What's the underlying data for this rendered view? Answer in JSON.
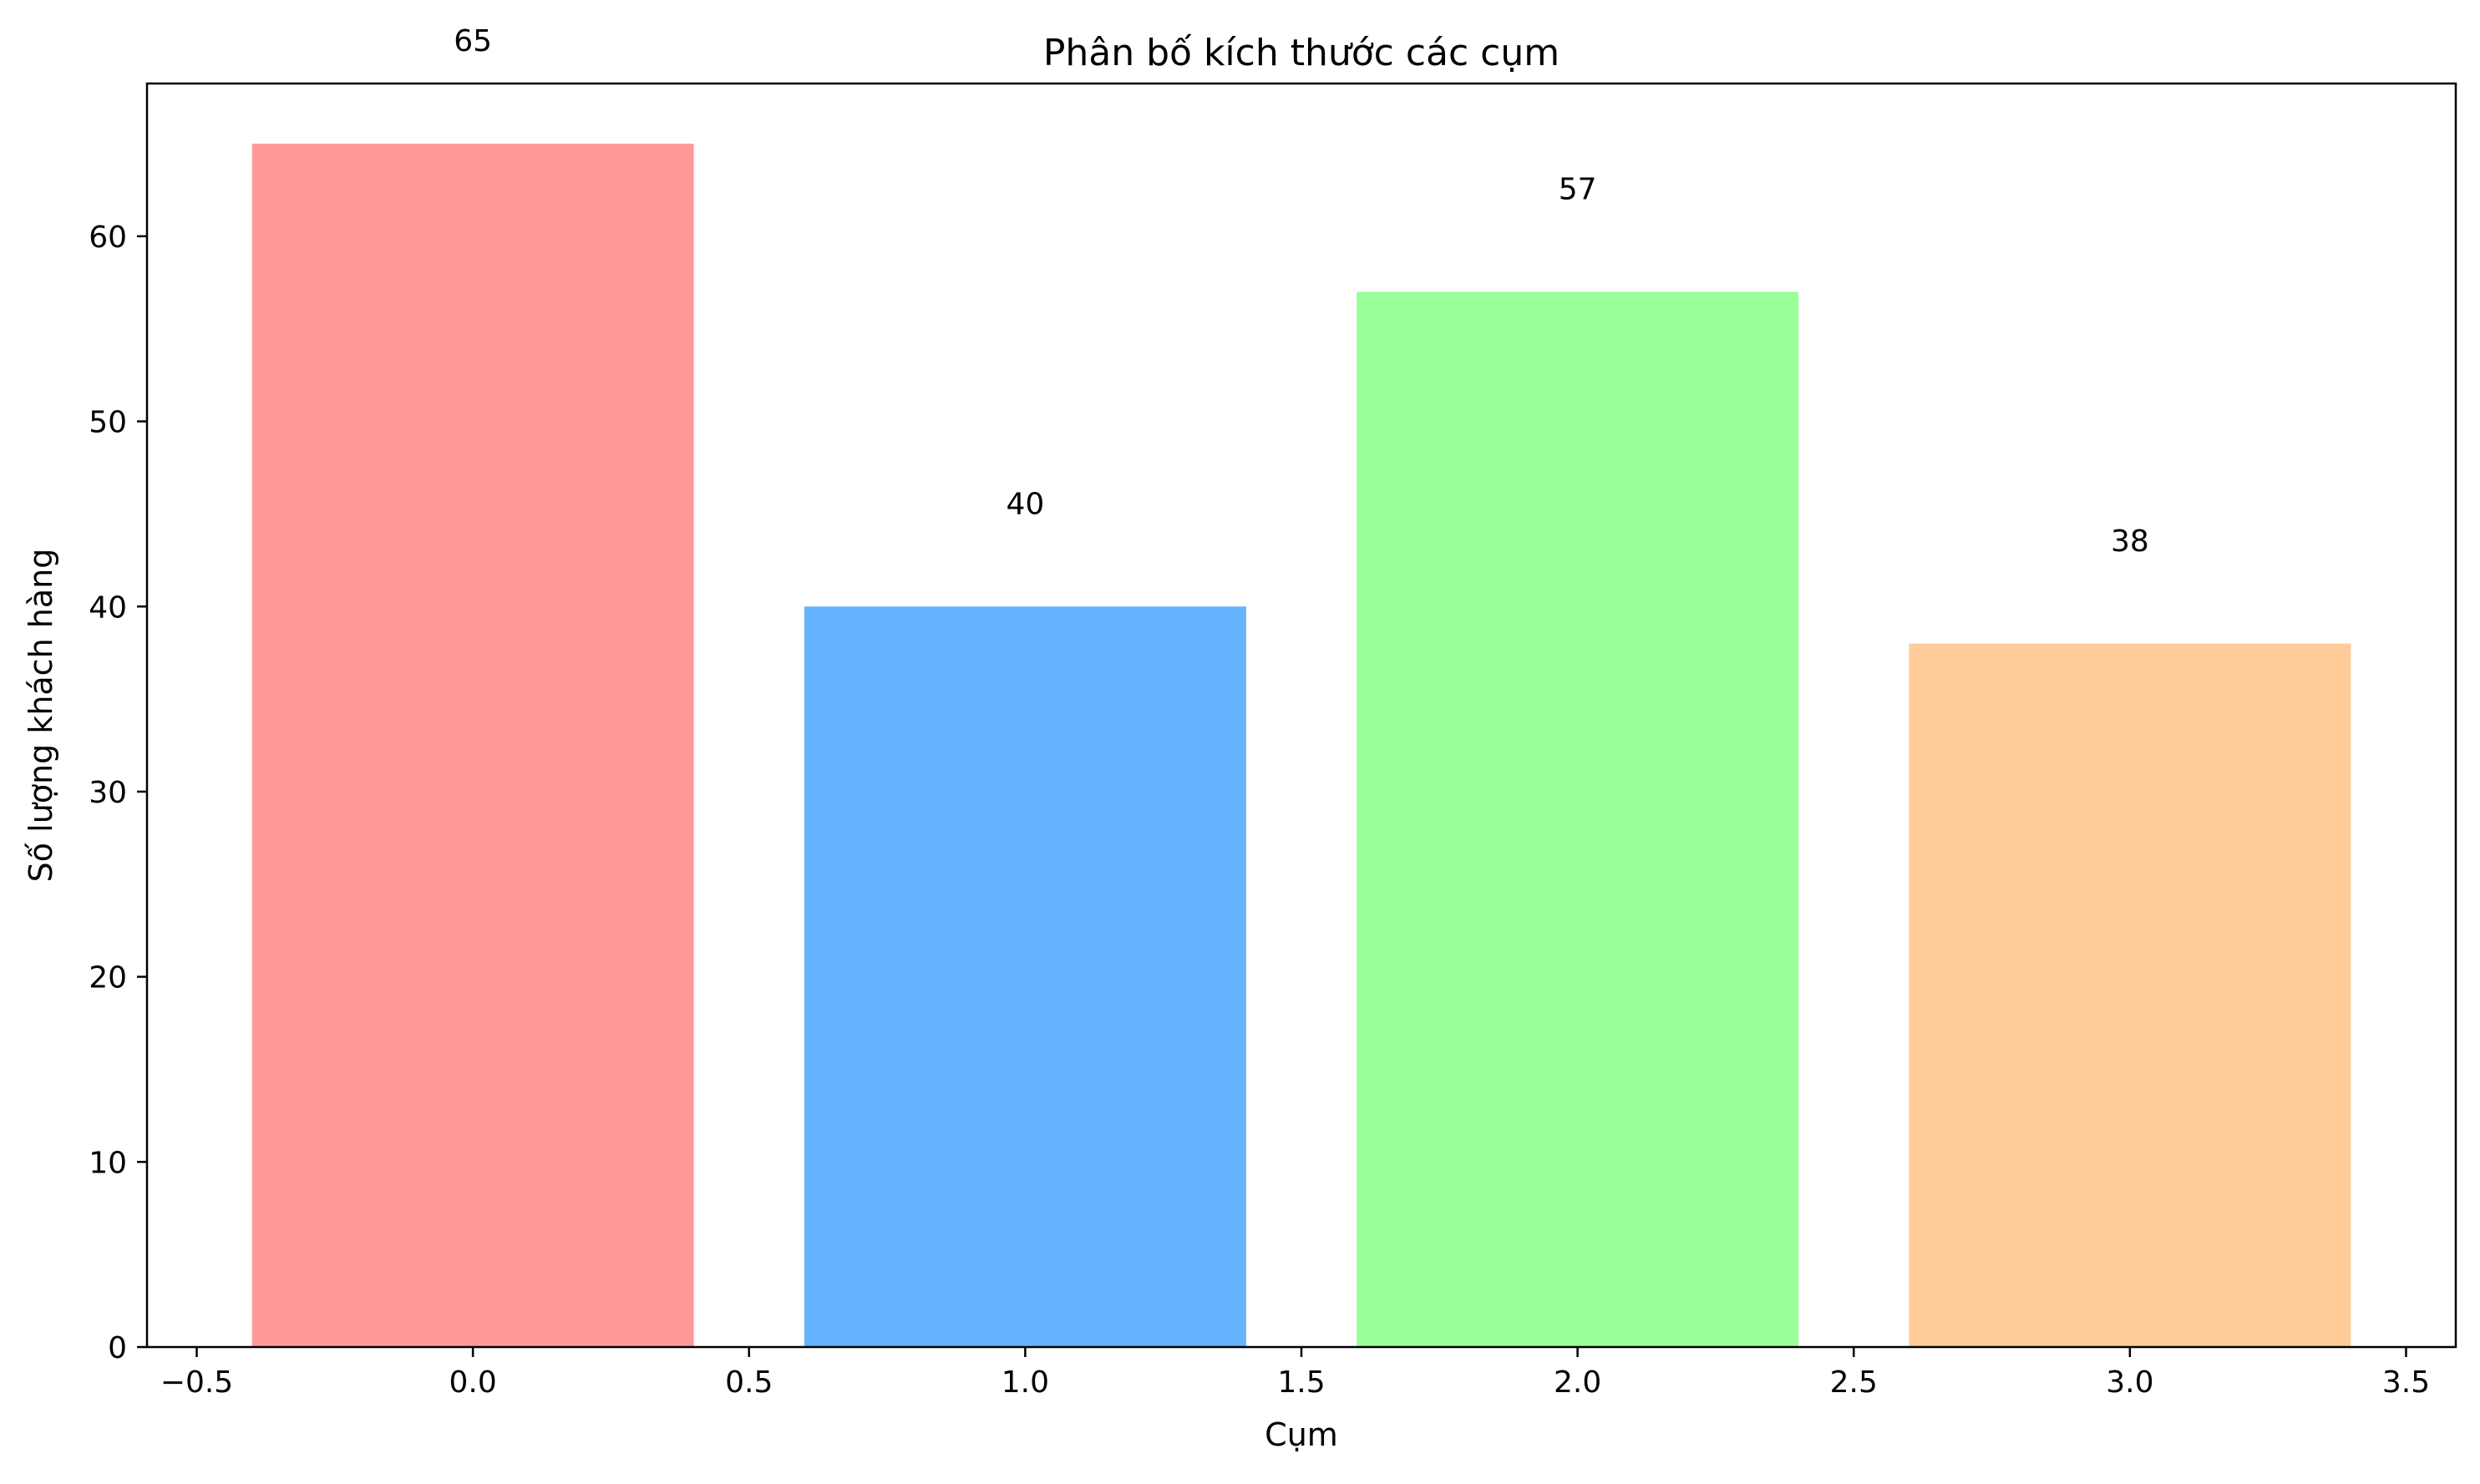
{
  "chart_data": {
    "type": "bar",
    "title": "Phân bố kích thước các cụm",
    "xlabel": "Cụm",
    "ylabel": "Số lượng khách hàng",
    "x": [
      0,
      1,
      2,
      3
    ],
    "values": [
      65,
      40,
      57,
      38
    ],
    "data_labels": [
      "65",
      "40",
      "57",
      "38"
    ],
    "bar_width": 0.8,
    "colors": [
      "#ff9999",
      "#66b3ff",
      "#99ff99",
      "#ffcc99"
    ],
    "xlim": [
      -0.59,
      3.59
    ],
    "ylim": [
      0,
      68.25
    ],
    "xticks": [
      -0.5,
      0.0,
      0.5,
      1.0,
      1.5,
      2.0,
      2.5,
      3.0,
      3.5
    ],
    "xtick_labels": [
      "−0.5",
      "0.0",
      "0.5",
      "1.0",
      "1.5",
      "2.0",
      "2.5",
      "3.0",
      "3.5"
    ],
    "yticks": [
      0,
      10,
      20,
      30,
      40,
      50,
      60
    ],
    "ytick_labels": [
      "0",
      "10",
      "20",
      "30",
      "40",
      "50",
      "60"
    ],
    "data_label_offset": 5,
    "grid": false,
    "legend": "none"
  }
}
